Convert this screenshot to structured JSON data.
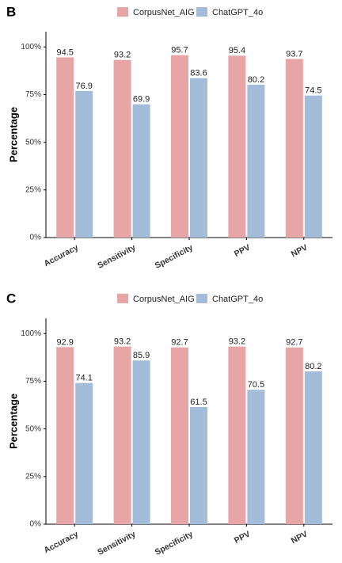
{
  "chart_data": [
    {
      "type": "bar",
      "title": "B",
      "ylabel": "Percentage",
      "categories": [
        "Accuracy",
        "Sensitivity",
        "Specificity",
        "PPV",
        "NPV"
      ],
      "series": [
        {
          "name": "CorpusNet_AIG",
          "color": "#e8a5a6",
          "values": [
            94.5,
            93.2,
            95.7,
            95.4,
            93.7
          ]
        },
        {
          "name": "ChatGPT_4o",
          "color": "#a2bcd9",
          "values": [
            76.9,
            69.9,
            83.6,
            80.2,
            74.5
          ]
        }
      ],
      "ylim": [
        0,
        108
      ],
      "yticks": [
        {
          "value": 0,
          "label": "0%"
        },
        {
          "value": 25,
          "label": "25%"
        },
        {
          "value": 50,
          "label": "50%"
        },
        {
          "value": 75,
          "label": "75%"
        },
        {
          "value": 100,
          "label": "100%"
        }
      ],
      "legend": "top"
    },
    {
      "type": "bar",
      "title": "C",
      "ylabel": "Percentage",
      "categories": [
        "Accuracy",
        "Sensitivity",
        "Specificity",
        "PPV",
        "NPV"
      ],
      "series": [
        {
          "name": "CorpusNet_AIG",
          "color": "#e8a5a6",
          "values": [
            92.9,
            93.2,
            92.7,
            93.2,
            92.7
          ]
        },
        {
          "name": "ChatGPT_4o",
          "color": "#a2bcd9",
          "values": [
            74.1,
            85.9,
            61.5,
            70.5,
            80.2
          ]
        }
      ],
      "ylim": [
        0,
        108
      ],
      "yticks": [
        {
          "value": 0,
          "label": "0%"
        },
        {
          "value": 25,
          "label": "25%"
        },
        {
          "value": 50,
          "label": "50%"
        },
        {
          "value": 75,
          "label": "75%"
        },
        {
          "value": 100,
          "label": "100%"
        }
      ],
      "legend": "top"
    }
  ]
}
